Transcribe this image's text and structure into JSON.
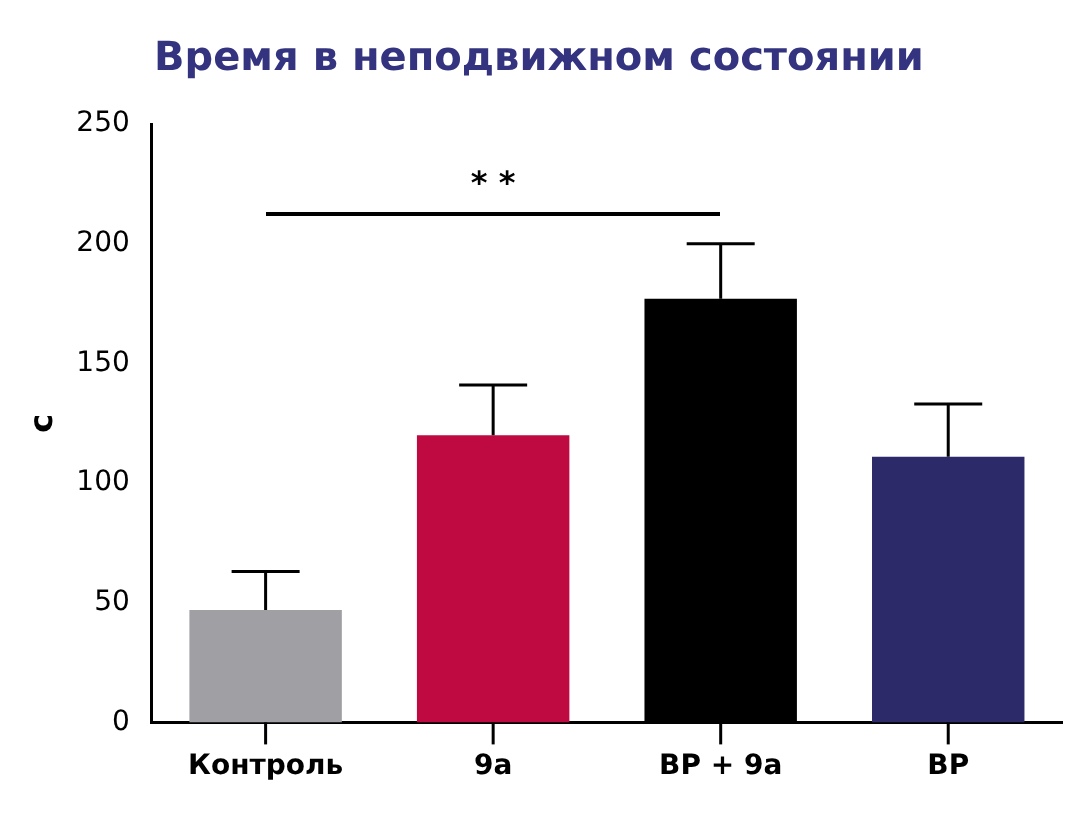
{
  "chart_data": {
    "type": "bar",
    "title": "Время в неподвижном состоянии",
    "ylabel": "с",
    "categories": [
      "Контроль",
      "9а",
      "ВР + 9а",
      "ВР"
    ],
    "values": [
      47,
      120,
      177,
      111
    ],
    "colors": [
      "#a0a0a4",
      "#be0a41",
      "#000000",
      "#2c2a68"
    ],
    "errors": [
      [
        47,
        63
      ],
      [
        120,
        141
      ],
      [
        177,
        200
      ],
      [
        111,
        133
      ]
    ],
    "ylim": [
      0,
      250
    ],
    "yticks": [
      0,
      50,
      100,
      150,
      200,
      250
    ],
    "grid": false,
    "legend": false,
    "annotations": [
      "* *"
    ]
  }
}
